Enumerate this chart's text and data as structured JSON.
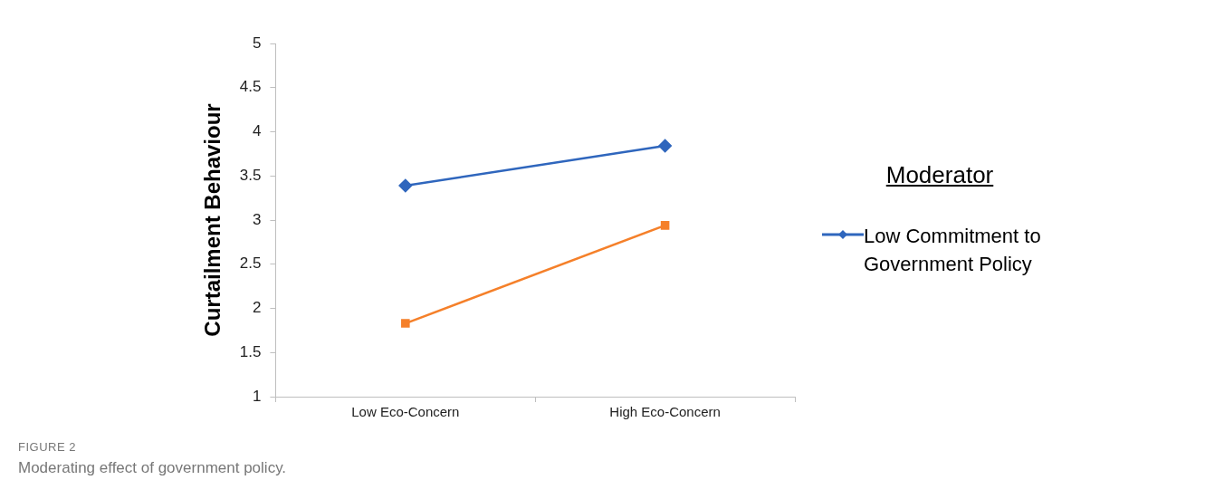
{
  "chart_data": {
    "type": "line",
    "categories": [
      "Low Eco-Concern",
      "High Eco-Concern"
    ],
    "ylabel": "Curtailment Behaviour",
    "ylim": [
      1,
      5
    ],
    "yticks": [
      1,
      1.5,
      2,
      2.5,
      3,
      3.5,
      4,
      4.5,
      5
    ],
    "grid": false,
    "legend": "right",
    "legend_title": "Moderator",
    "series": [
      {
        "name": "Low Commitment to Government Policy",
        "color": "#2f66bd",
        "marker": "diamond",
        "values": [
          3.39,
          3.84
        ]
      },
      {
        "color": "#f5802a",
        "marker": "square",
        "values": [
          1.83,
          2.94
        ]
      }
    ],
    "annotations": [
      "FIGURE 2",
      "Moderating effect of government policy."
    ]
  }
}
